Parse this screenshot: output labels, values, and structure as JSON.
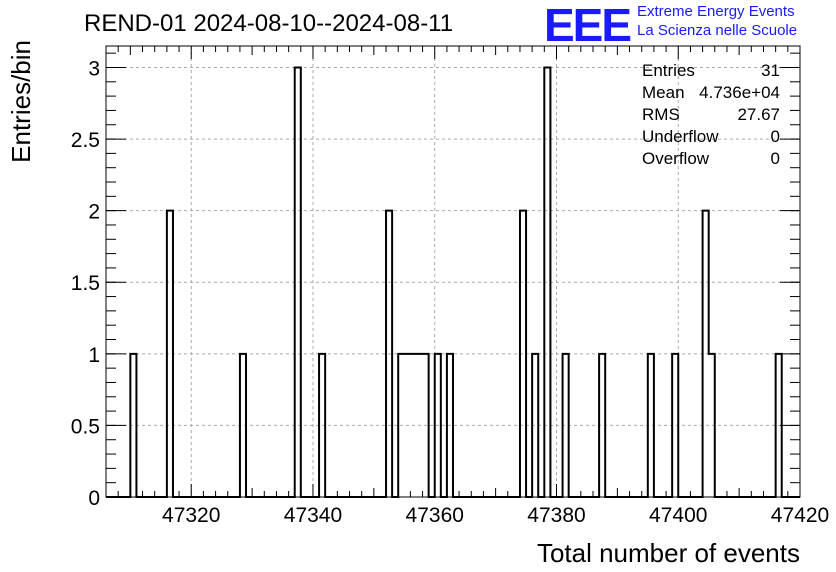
{
  "chart_data": {
    "type": "bar",
    "title": "REND-01 2024-08-10--2024-08-11",
    "xlabel": "Total number of events",
    "ylabel": "Entries/bin",
    "xlim": [
      47306,
      47420
    ],
    "ylim": [
      0,
      3.15
    ],
    "xticks": [
      47320,
      47340,
      47360,
      47380,
      47400,
      47420
    ],
    "yticks": [
      0,
      0.5,
      1,
      1.5,
      2,
      2.5,
      3
    ],
    "bin_width": 1,
    "grid": true,
    "bins": [
      {
        "x": 47310,
        "y": 1
      },
      {
        "x": 47316,
        "y": 2
      },
      {
        "x": 47328,
        "y": 1
      },
      {
        "x": 47337,
        "y": 3
      },
      {
        "x": 47341,
        "y": 1
      },
      {
        "x": 47352,
        "y": 2
      },
      {
        "x": 47354,
        "y": 1
      },
      {
        "x": 47355,
        "y": 1
      },
      {
        "x": 47356,
        "y": 1
      },
      {
        "x": 47357,
        "y": 1
      },
      {
        "x": 47358,
        "y": 1
      },
      {
        "x": 47360,
        "y": 1
      },
      {
        "x": 47362,
        "y": 1
      },
      {
        "x": 47374,
        "y": 2
      },
      {
        "x": 47376,
        "y": 1
      },
      {
        "x": 47378,
        "y": 3
      },
      {
        "x": 47381,
        "y": 1
      },
      {
        "x": 47387,
        "y": 1
      },
      {
        "x": 47395,
        "y": 1
      },
      {
        "x": 47399,
        "y": 1
      },
      {
        "x": 47404,
        "y": 2
      },
      {
        "x": 47405,
        "y": 1
      },
      {
        "x": 47416,
        "y": 1
      }
    ],
    "stats": [
      {
        "label": "Entries",
        "value": "31"
      },
      {
        "label": "Mean",
        "value": "4.736e+04"
      },
      {
        "label": "RMS",
        "value": "27.67"
      },
      {
        "label": "Underflow",
        "value": "0"
      },
      {
        "label": "Overflow",
        "value": "0"
      }
    ]
  },
  "logo": {
    "mark": "EEE",
    "line1": "Extreme Energy Events",
    "line2": "La Scienza nelle Scuole",
    "color": "#1a1aff"
  }
}
